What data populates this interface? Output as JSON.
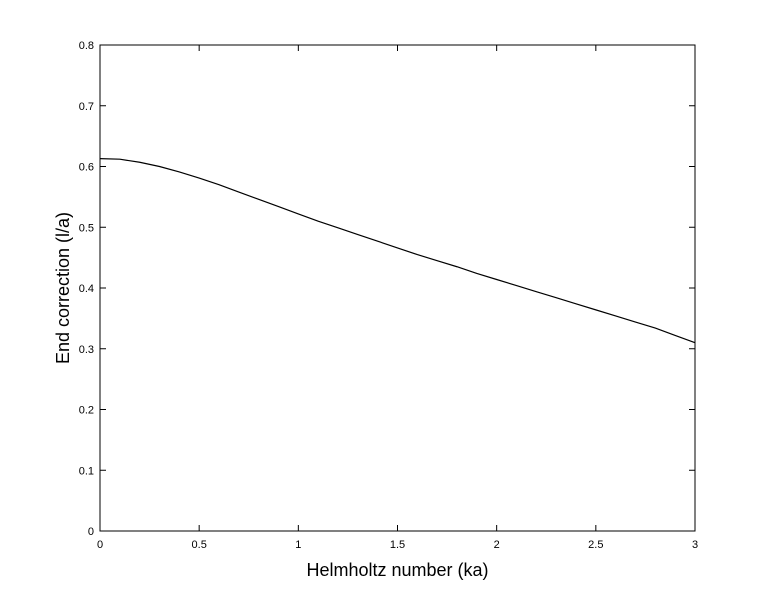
{
  "chart_data": {
    "type": "line",
    "title": "",
    "xlabel": "Helmholtz number (ka)",
    "ylabel": "End correction (l/a)",
    "xlim": [
      0,
      3
    ],
    "ylim": [
      0,
      0.8
    ],
    "x_ticks": [
      0,
      0.5,
      1,
      1.5,
      2,
      2.5,
      3
    ],
    "x_tick_labels": [
      "0",
      "0.5",
      "1",
      "1.5",
      "2",
      "2.5",
      "3"
    ],
    "y_ticks": [
      0,
      0.1,
      0.2,
      0.3,
      0.4,
      0.5,
      0.6,
      0.7,
      0.8
    ],
    "y_tick_labels": [
      "0",
      "0.1",
      "0.2",
      "0.3",
      "0.4",
      "0.5",
      "0.6",
      "0.7",
      "0.8"
    ],
    "grid": false,
    "line_color": "#000000",
    "series": [
      {
        "x": [
          0,
          0.1,
          0.2,
          0.3,
          0.4,
          0.5,
          0.6,
          0.7,
          0.8,
          0.9,
          1.0,
          1.1,
          1.2,
          1.3,
          1.4,
          1.5,
          1.6,
          1.7,
          1.8,
          1.9,
          2.0,
          2.1,
          2.2,
          2.3,
          2.4,
          2.5,
          2.6,
          2.7,
          2.8,
          2.9,
          3.0
        ],
        "y": [
          0.613,
          0.612,
          0.607,
          0.6,
          0.591,
          0.581,
          0.57,
          0.558,
          0.546,
          0.534,
          0.522,
          0.51,
          0.499,
          0.488,
          0.477,
          0.466,
          0.455,
          0.445,
          0.435,
          0.424,
          0.414,
          0.404,
          0.394,
          0.384,
          0.374,
          0.364,
          0.354,
          0.344,
          0.334,
          0.322,
          0.31
        ]
      }
    ]
  }
}
